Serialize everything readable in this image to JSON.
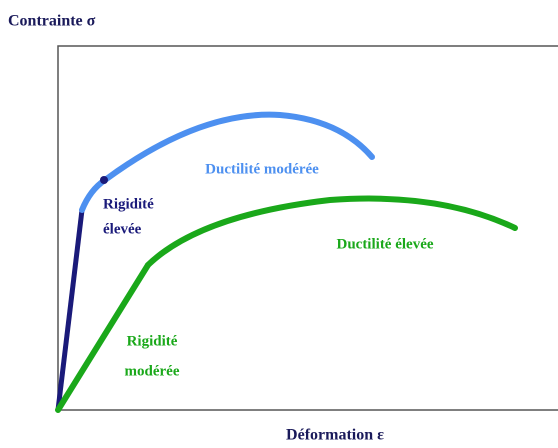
{
  "y_axis_label": "Contrainte σ",
  "x_axis_label": "Déformation ε",
  "curves": [
    {
      "label": "Ductilité modérée"
    },
    {
      "label_lines": [
        "Rigidité",
        "élevée"
      ]
    },
    {
      "label": "Ductilité élevée"
    },
    {
      "label_lines": [
        "Rigidité",
        "modérée"
      ]
    }
  ]
}
